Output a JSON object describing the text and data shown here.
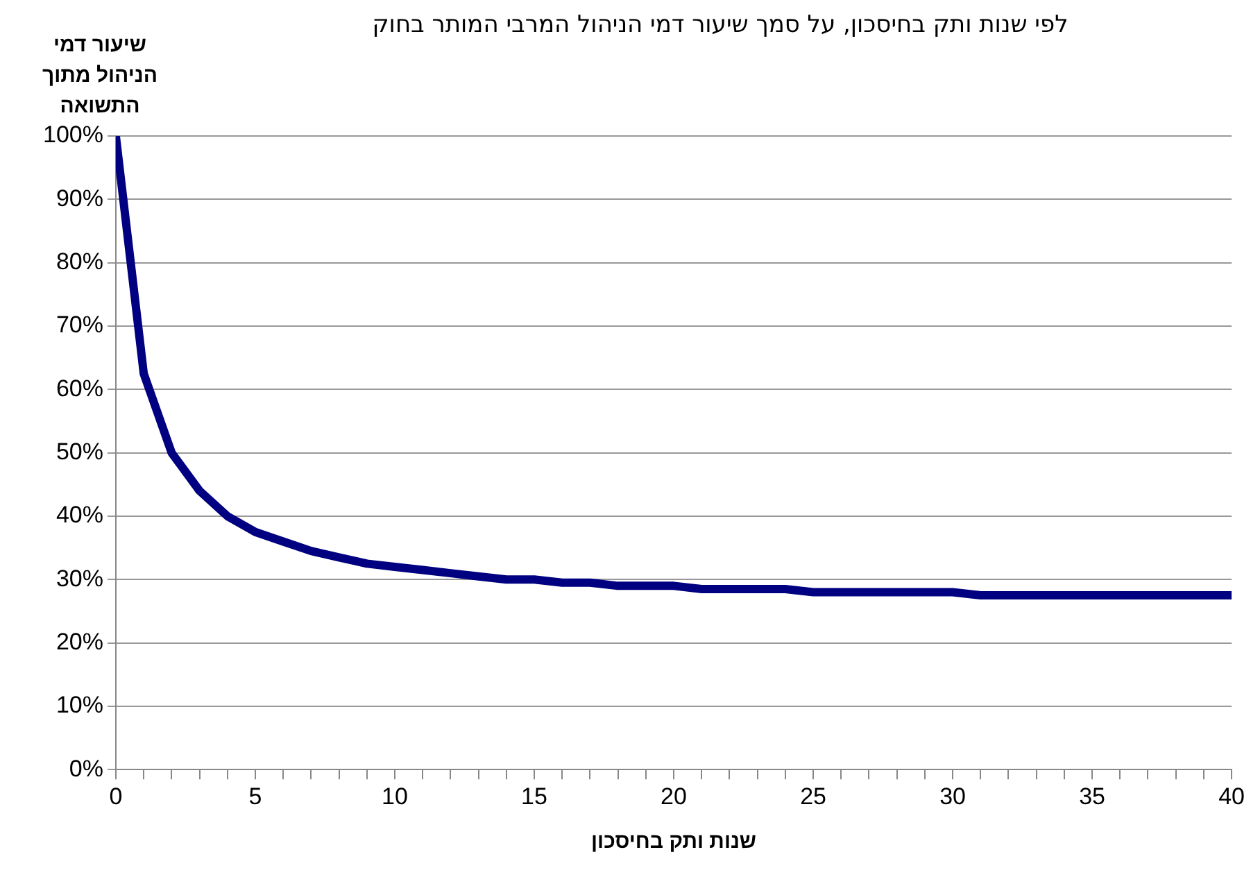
{
  "chart_data": {
    "type": "line",
    "title": "לפי שנות ותק בחיסכון, על סמך שיעור דמי הניהול המרבי המותר בחוק",
    "xlabel": "שנות ותק בחיסכון",
    "ylabel": "שיעור דמי הניהול מתוך התשואה",
    "x": [
      0,
      1,
      2,
      3,
      4,
      5,
      6,
      7,
      8,
      9,
      10,
      11,
      12,
      13,
      14,
      15,
      16,
      17,
      18,
      19,
      20,
      21,
      22,
      23,
      24,
      25,
      26,
      27,
      28,
      29,
      30,
      31,
      32,
      33,
      34,
      35,
      36,
      37,
      38,
      39,
      40
    ],
    "series": [
      {
        "color": "#000080",
        "values": [
          100,
          62.5,
          50,
          44,
          40,
          37.5,
          36,
          34.5,
          33.5,
          32.5,
          32,
          31.5,
          31,
          30.5,
          30,
          30,
          29.5,
          29.5,
          29,
          29,
          29,
          28.5,
          28.5,
          28.5,
          28.5,
          28,
          28,
          28,
          28,
          28,
          28,
          27.5,
          27.5,
          27.5,
          27.5,
          27.5,
          27.5,
          27.5,
          27.5,
          27.5,
          27.5
        ]
      }
    ],
    "xlim": [
      0,
      40
    ],
    "xticks": [
      0,
      {
        "value": 1,
        "label": null
      },
      {
        "value": 2,
        "label": null
      },
      {
        "value": 3,
        "label": null
      },
      {
        "value": 4,
        "label": null
      },
      5,
      {
        "value": 6,
        "label": null
      },
      {
        "value": 7,
        "label": null
      },
      {
        "value": 8,
        "label": null
      },
      {
        "value": 9,
        "label": null
      },
      10,
      {
        "value": 11,
        "label": null
      },
      {
        "value": 12,
        "label": null
      },
      {
        "value": 13,
        "label": null
      },
      {
        "value": 14,
        "label": null
      },
      15,
      {
        "value": 16,
        "label": null
      },
      {
        "value": 17,
        "label": null
      },
      {
        "value": 18,
        "label": null
      },
      {
        "value": 19,
        "label": null
      },
      20,
      {
        "value": 21,
        "label": null
      },
      {
        "value": 22,
        "label": null
      },
      {
        "value": 23,
        "label": null
      },
      {
        "value": 24,
        "label": null
      },
      25,
      {
        "value": 26,
        "label": null
      },
      {
        "value": 27,
        "label": null
      },
      {
        "value": 28,
        "label": null
      },
      {
        "value": 29,
        "label": null
      },
      30,
      {
        "value": 31,
        "label": null
      },
      {
        "value": 32,
        "label": null
      },
      {
        "value": 33,
        "label": null
      },
      {
        "value": 34,
        "label": null
      },
      35,
      {
        "value": 36,
        "label": null
      },
      {
        "value": 37,
        "label": null
      },
      {
        "value": 38,
        "label": null
      },
      {
        "value": 39,
        "label": null
      },
      40
    ],
    "ylim": [
      0,
      100
    ],
    "yticks": [
      {
        "value": 0,
        "label": "0%"
      },
      {
        "value": 10,
        "label": "10%"
      },
      {
        "value": 20,
        "label": "20%"
      },
      {
        "value": 30,
        "label": "30%"
      },
      {
        "value": 40,
        "label": "40%"
      },
      {
        "value": 50,
        "label": "50%"
      },
      {
        "value": 60,
        "label": "60%"
      },
      {
        "value": 70,
        "label": "70%"
      },
      {
        "value": 80,
        "label": "80%"
      },
      {
        "value": 90,
        "label": "90%"
      },
      {
        "value": 100,
        "label": "100%"
      }
    ],
    "grid": "y",
    "legend": false,
    "marker": "none",
    "line_style": "solid"
  }
}
